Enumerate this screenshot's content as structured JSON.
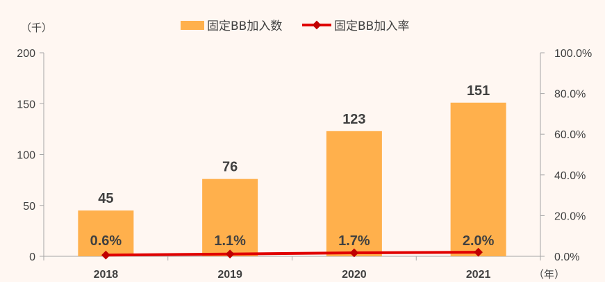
{
  "chart_data": {
    "type": "bar",
    "categories": [
      "2018",
      "2019",
      "2020",
      "2021"
    ],
    "series": [
      {
        "name": "固定BB加入数",
        "type": "bar",
        "axis": "left",
        "values": [
          45,
          76,
          123,
          151
        ],
        "labels": [
          "45",
          "76",
          "123",
          "151"
        ],
        "color": "#FFB04C"
      },
      {
        "name": "固定BB加入率",
        "type": "line",
        "axis": "right",
        "values": [
          0.6,
          1.1,
          1.7,
          2.0
        ],
        "labels": [
          "0.6%",
          "1.1%",
          "1.7%",
          "2.0%"
        ],
        "color": "#E00000"
      }
    ],
    "left_axis": {
      "unit": "（千）",
      "ylim": [
        0,
        200
      ],
      "ticks": [
        "0",
        "50",
        "100",
        "150",
        "200"
      ]
    },
    "right_axis": {
      "ylim": [
        0,
        100
      ],
      "ticks": [
        "0.0%",
        "20.0%",
        "40.0%",
        "60.0%",
        "80.0%",
        "100.0%"
      ]
    },
    "x_axis": {
      "unit": "（年）"
    },
    "legend_position": "top",
    "grid": false
  }
}
